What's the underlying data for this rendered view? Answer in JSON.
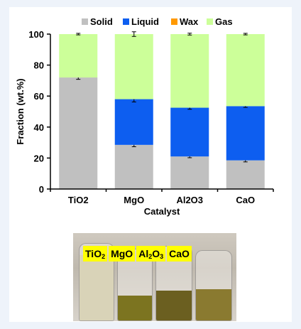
{
  "chart_data": {
    "type": "stacked-bar",
    "categories": [
      "TiO2",
      "MgO",
      "Al2O3",
      "CaO"
    ],
    "series": [
      {
        "name": "Solid",
        "color": "#c0c0c0",
        "values": [
          72,
          28.5,
          21,
          18.5
        ],
        "errors": [
          1.2,
          1.2,
          0.8,
          1.0
        ]
      },
      {
        "name": "Liquid",
        "color": "#0d5ef0",
        "values": [
          0,
          29.5,
          31.5,
          35
        ],
        "errors": [
          0,
          1.8,
          1.0,
          0.8
        ]
      },
      {
        "name": "Wax",
        "color": "#ff9900",
        "values": [
          0,
          0,
          0,
          0
        ],
        "errors": [
          0,
          0,
          0,
          0
        ]
      },
      {
        "name": "Gas",
        "color": "#ccff99",
        "values": [
          28,
          42,
          47.5,
          46.5
        ],
        "errors": [
          0.5,
          1.5,
          0.6,
          0.5
        ]
      }
    ],
    "xlabel": "Catalyst",
    "ylabel": "Fraction (wt.%)",
    "ylim": [
      0,
      100
    ],
    "yticks": [
      0,
      20,
      40,
      60,
      80,
      100
    ],
    "legend_position": "top",
    "grid": false
  },
  "photo": {
    "labels": [
      {
        "base": "TiO",
        "sub": "2",
        "rest": ""
      },
      {
        "base": "MgO",
        "sub": "",
        "rest": ""
      },
      {
        "base": "Al",
        "sub": "2",
        "rest": "O",
        "sub2": "3"
      },
      {
        "base": "CaO",
        "sub": "",
        "rest": ""
      }
    ],
    "jars": [
      {
        "liquid_color": "#d9d3b8",
        "fill": 0.85
      },
      {
        "liquid_color": "#7c7420",
        "fill": 0.35
      },
      {
        "liquid_color": "#6b5f20",
        "fill": 0.4
      },
      {
        "liquid_color": "#8a7a30",
        "fill": 0.45
      }
    ]
  }
}
